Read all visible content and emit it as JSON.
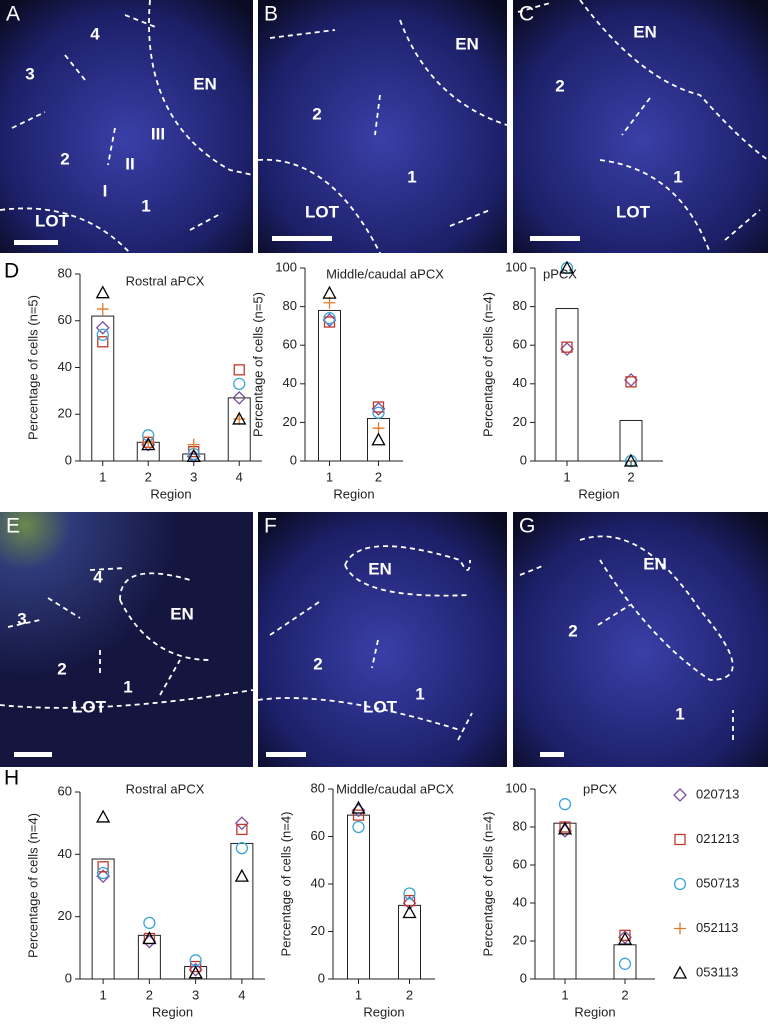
{
  "panels": [
    {
      "label": "A",
      "texts": [
        "4",
        "3",
        "EN",
        "III",
        "II",
        "I",
        "2",
        "1",
        "LOT"
      ]
    },
    {
      "label": "B",
      "texts": [
        "EN",
        "2",
        "1",
        "LOT"
      ]
    },
    {
      "label": "C",
      "texts": [
        "EN",
        "2",
        "1",
        "LOT"
      ]
    },
    {
      "label": "E",
      "texts": [
        "4",
        "3",
        "EN",
        "2",
        "1",
        "LOT"
      ]
    },
    {
      "label": "F",
      "texts": [
        "EN",
        "2",
        "1",
        "LOT"
      ]
    },
    {
      "label": "G",
      "texts": [
        "EN",
        "2",
        "1"
      ]
    }
  ],
  "row_labels": [
    "D",
    "H"
  ],
  "legend": [
    {
      "name": "020713",
      "color": "#7b4fa0",
      "marker": "diamond"
    },
    {
      "name": "021213",
      "color": "#c0392b",
      "marker": "square"
    },
    {
      "name": "050713",
      "color": "#3aa6d8",
      "marker": "circle"
    },
    {
      "name": "052113",
      "color": "#e07b2a",
      "marker": "plus"
    },
    {
      "name": "053113",
      "color": "#000000",
      "marker": "triangle"
    }
  ],
  "chart_data": [
    {
      "type": "bar",
      "title": "Rostral aPCX",
      "x_label": "Region",
      "y_label": "Percentage of cells (n=5)",
      "categories": [
        "1",
        "2",
        "3",
        "4"
      ],
      "values": [
        62,
        8,
        3,
        27
      ],
      "ylim": [
        0,
        80
      ],
      "yticks": [
        0,
        20,
        40,
        60,
        80
      ],
      "series": [
        {
          "values": [
            57,
            7,
            2,
            27
          ]
        },
        {
          "values": [
            51,
            8,
            4,
            39
          ]
        },
        {
          "values": [
            54,
            11,
            3,
            33
          ]
        },
        {
          "values": [
            65,
            8,
            7,
            18
          ]
        },
        {
          "values": [
            72,
            7,
            2,
            18
          ]
        }
      ]
    },
    {
      "type": "bar",
      "title": "Middle/caudal aPCX",
      "x_label": "Region",
      "y_label": "Percentage of cells (n=5)",
      "categories": [
        "1",
        "2"
      ],
      "values": [
        78,
        22
      ],
      "ylim": [
        0,
        100
      ],
      "yticks": [
        0,
        20,
        40,
        60,
        80,
        100
      ],
      "series": [
        {
          "values": [
            73,
            27
          ]
        },
        {
          "values": [
            72,
            28
          ]
        },
        {
          "values": [
            74,
            25
          ]
        },
        {
          "values": [
            82,
            17
          ]
        },
        {
          "values": [
            87,
            11
          ]
        }
      ]
    },
    {
      "type": "bar",
      "title": "pPCX",
      "x_label": "Region",
      "y_label": "Percentage of cells (n=4)",
      "categories": [
        "1",
        "2"
      ],
      "values": [
        79,
        21
      ],
      "ylim": [
        0,
        100
      ],
      "yticks": [
        0,
        20,
        40,
        60,
        80,
        100
      ],
      "series": [
        {
          "values": [
            58,
            42
          ]
        },
        {
          "values": [
            59,
            41
          ]
        },
        {
          "values": [
            100,
            0
          ]
        },
        {
          "values": [
            null,
            null
          ]
        },
        {
          "values": [
            100,
            0
          ]
        }
      ]
    },
    {
      "type": "bar",
      "title": "Rostral aPCX",
      "x_label": "Region",
      "y_label": "Percentage of cells (n=4)",
      "categories": [
        "1",
        "2",
        "3",
        "4"
      ],
      "values": [
        38.5,
        14,
        4,
        43.5
      ],
      "ylim": [
        0,
        60
      ],
      "yticks": [
        0,
        20,
        40,
        60
      ],
      "series": [
        {
          "values": [
            33,
            12,
            3,
            50
          ]
        },
        {
          "values": [
            36,
            13,
            4,
            48
          ]
        },
        {
          "values": [
            34,
            18,
            6,
            42
          ]
        },
        {
          "values": [
            null,
            null,
            null,
            null
          ]
        },
        {
          "values": [
            52,
            13,
            2,
            33
          ]
        }
      ]
    },
    {
      "type": "bar",
      "title": "Middle/caudal aPCX",
      "x_label": "Region",
      "y_label": "Percentage of cells (n=4)",
      "categories": [
        "1",
        "2"
      ],
      "values": [
        69,
        31
      ],
      "ylim": [
        0,
        80
      ],
      "yticks": [
        0,
        20,
        40,
        60,
        80
      ],
      "series": [
        {
          "values": [
            71,
            32
          ]
        },
        {
          "values": [
            69,
            33
          ]
        },
        {
          "values": [
            64,
            36
          ]
        },
        {
          "values": [
            null,
            null
          ]
        },
        {
          "values": [
            72,
            28
          ]
        }
      ]
    },
    {
      "type": "bar",
      "title": "pPCX",
      "x_label": "Region",
      "y_label": "Percentage of cells (n=4)",
      "categories": [
        "1",
        "2"
      ],
      "values": [
        82,
        18
      ],
      "ylim": [
        0,
        100
      ],
      "yticks": [
        0,
        20,
        40,
        60,
        80,
        100
      ],
      "series": [
        {
          "values": [
            78,
            22
          ]
        },
        {
          "values": [
            80,
            23
          ]
        },
        {
          "values": [
            92,
            8
          ]
        },
        {
          "values": [
            null,
            null
          ]
        },
        {
          "values": [
            79,
            21
          ]
        }
      ]
    }
  ]
}
